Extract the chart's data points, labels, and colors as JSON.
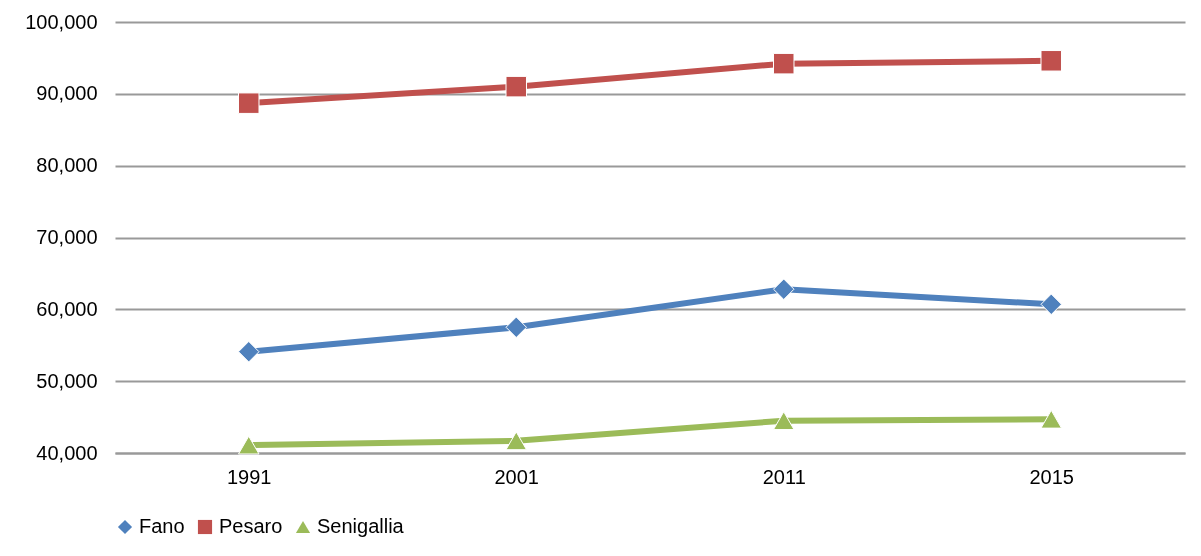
{
  "chart_data": {
    "type": "line",
    "categories": [
      "1991",
      "2001",
      "2011",
      "2015"
    ],
    "series": [
      {
        "name": "Fano",
        "color": "#4f81bd",
        "marker": "diamond",
        "values": [
          54100,
          57500,
          62800,
          60700
        ]
      },
      {
        "name": "Pesaro",
        "color": "#c0504d",
        "marker": "square",
        "values": [
          88700,
          91000,
          94200,
          94600
        ]
      },
      {
        "name": "Senigallia",
        "color": "#9bbb59",
        "marker": "triangle",
        "values": [
          41100,
          41700,
          44500,
          44700
        ]
      }
    ],
    "ylim": [
      40000,
      100000
    ],
    "yticks": [
      {
        "value": 40000,
        "label": "40,000"
      },
      {
        "value": 50000,
        "label": "50,000"
      },
      {
        "value": 60000,
        "label": "60,000"
      },
      {
        "value": 70000,
        "label": "70,000"
      },
      {
        "value": 80000,
        "label": "80,000"
      },
      {
        "value": 90000,
        "label": "90,000"
      },
      {
        "value": 100000,
        "label": "100,000"
      }
    ],
    "grid": "y",
    "legend": "bottom"
  }
}
